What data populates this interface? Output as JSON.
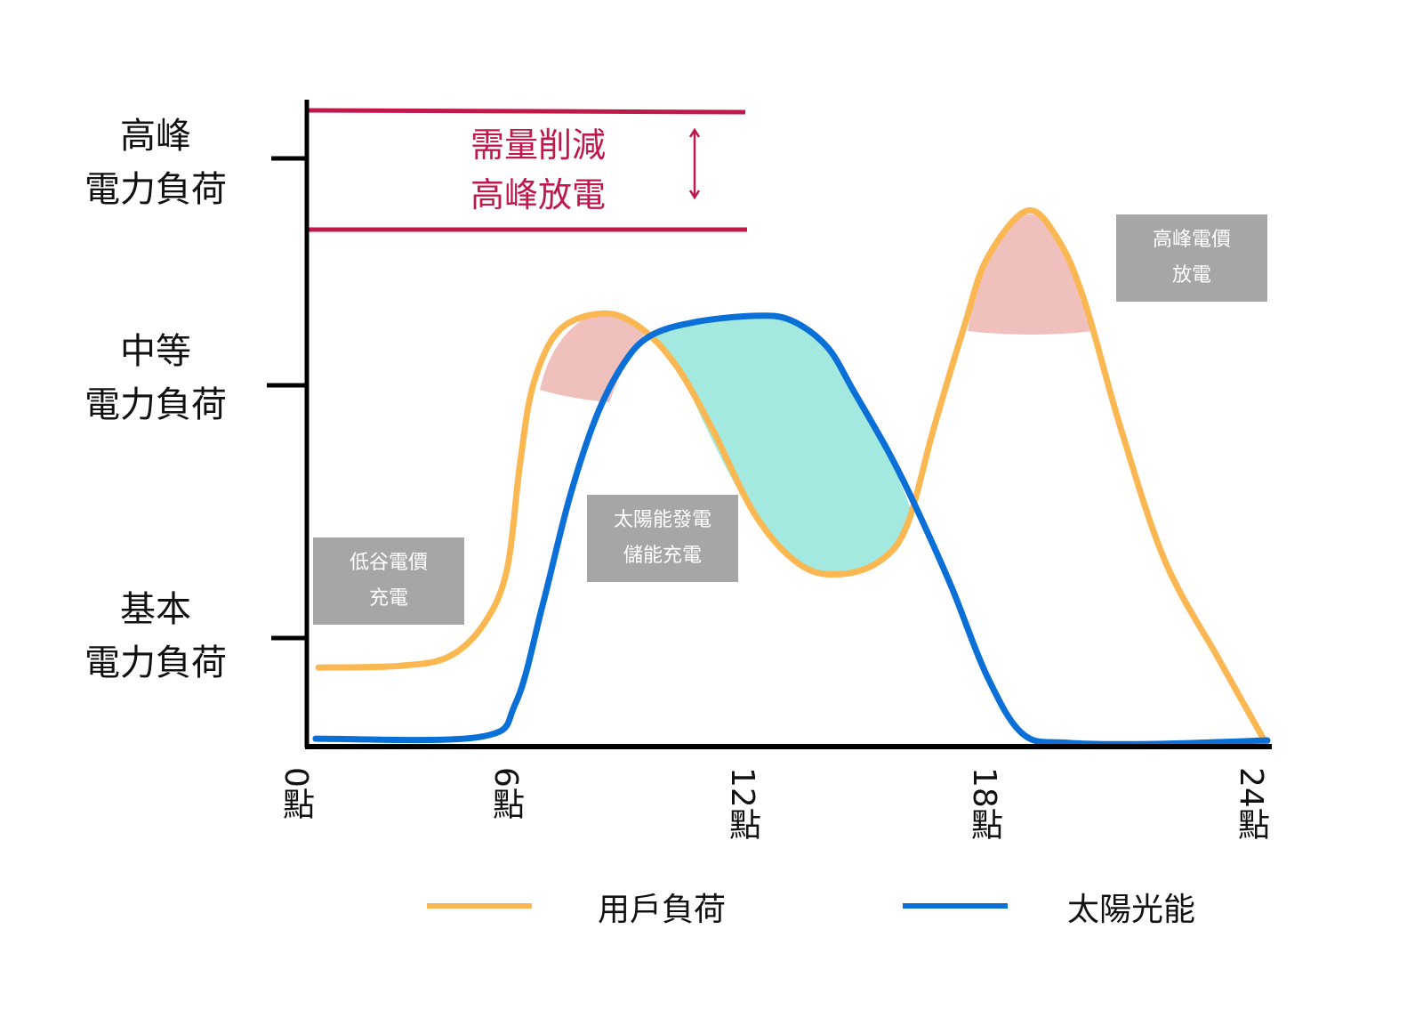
{
  "chart_data": {
    "type": "line",
    "title": "",
    "xlabel": "",
    "ylabel": "",
    "xlim": [
      0,
      24
    ],
    "x_ticks": [
      "0點",
      "6點",
      "12點",
      "18點",
      "24點"
    ],
    "y_ticks": [
      {
        "line1": "基本",
        "line2": "電力負荷"
      },
      {
        "line1": "中等",
        "line2": "電力負荷"
      },
      {
        "line1": "高峰",
        "line2": "電力負荷"
      }
    ],
    "legend": "bottom",
    "series": [
      {
        "name": "用戶負荷",
        "color": "#fbb852",
        "x": [
          0.29,
          2.33,
          3.56,
          4.44,
          5.0,
          5.33,
          5.67,
          6.33,
          7.44,
          8.33,
          9.22,
          10.11,
          11.22,
          12.33,
          13.33,
          14.33,
          15.0,
          15.67,
          16.44,
          17.0,
          18.0,
          18.78,
          19.44,
          20.33,
          21.44,
          22.78,
          24
        ],
        "y": [
          13.3,
          13.6,
          15.2,
          20.9,
          30.0,
          48.2,
          61.8,
          70.9,
          73.6,
          71.2,
          64.8,
          54.2,
          39.1,
          30.8,
          29.2,
          31.5,
          37.6,
          54.2,
          71.7,
          83.0,
          91.1,
          86.1,
          75.5,
          54.2,
          31.5,
          14.8,
          0
        ]
      },
      {
        "name": "太陽光能",
        "color": "#0a6fd6",
        "x": [
          0.22,
          4.33,
          5.22,
          5.89,
          6.56,
          7.22,
          7.89,
          8.56,
          9.67,
          11.22,
          12.11,
          13.0,
          13.67,
          14.56,
          15.22,
          16.11,
          17.0,
          17.89,
          19.0,
          21.22,
          24
        ],
        "y": [
          1.2,
          1.5,
          7.3,
          23.9,
          42.1,
          55.8,
          64.8,
          69.7,
          72.1,
          73.2,
          72.4,
          67.9,
          60.3,
          49.7,
          40.6,
          27.0,
          11.8,
          2.0,
          0.5,
          0.3,
          0.9
        ]
      }
    ],
    "annotations": {
      "demand_cut": [
        "需量削減",
        "高峰放電"
      ],
      "valley": [
        "低谷電價",
        "充電"
      ],
      "solar": [
        "太陽能發電",
        "儲能充電"
      ],
      "peak": [
        "高峰電價",
        "放電"
      ]
    },
    "colors": {
      "red": "#c0184a",
      "teal": "#a3e9e0",
      "pink": "#f0c0bd",
      "gray": "#a6a6a6"
    }
  }
}
